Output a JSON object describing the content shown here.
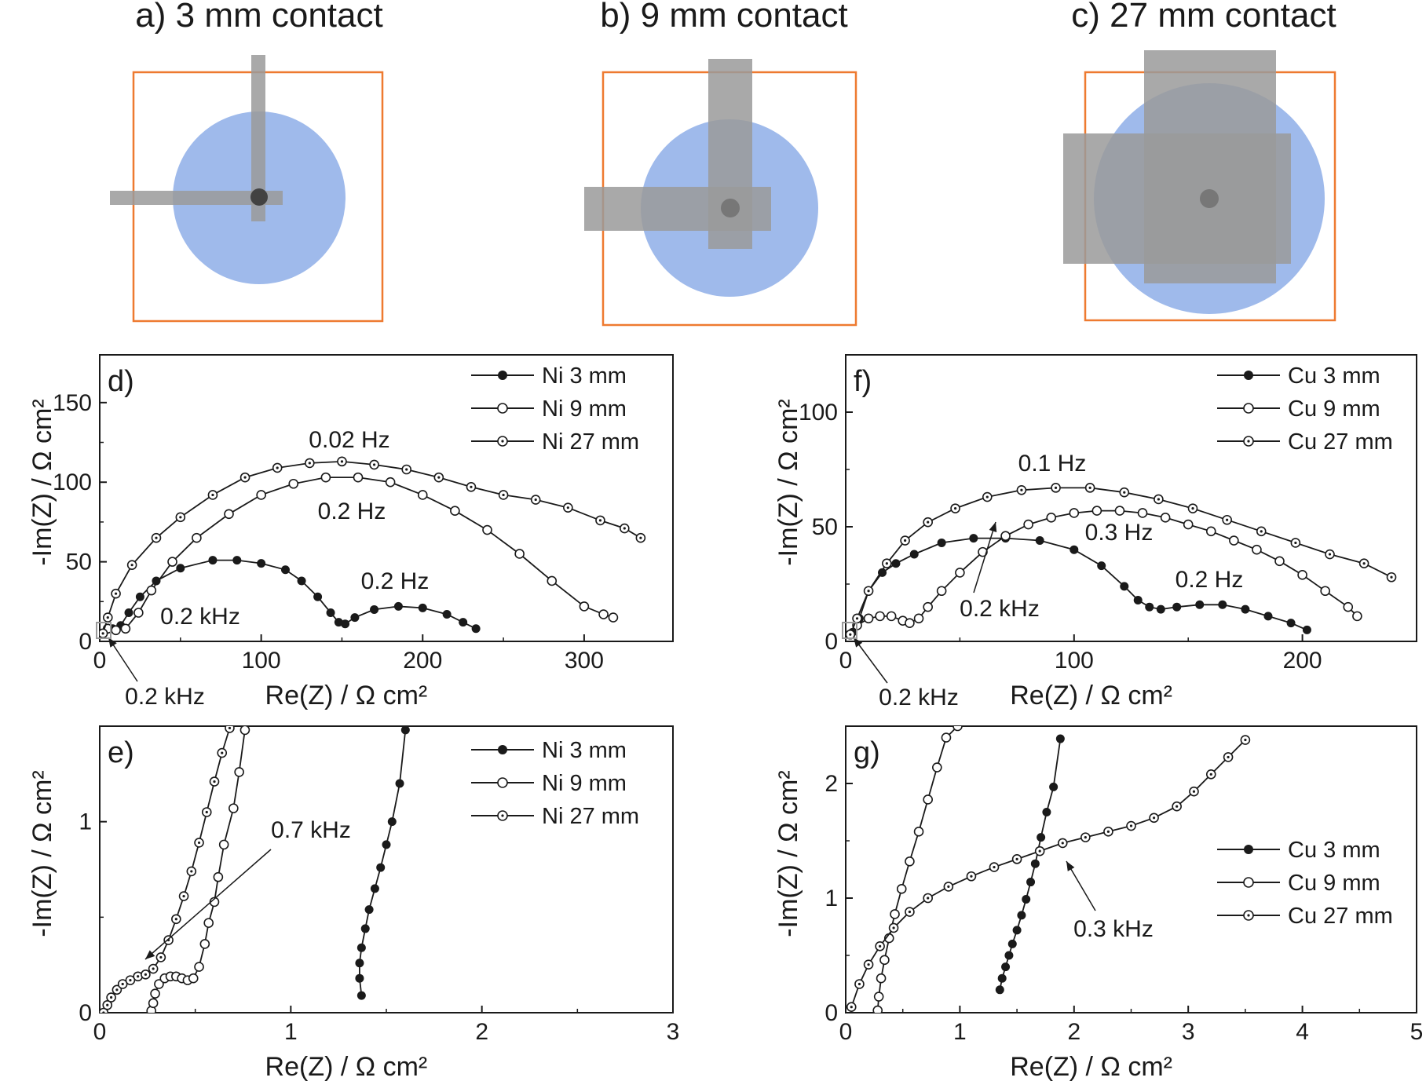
{
  "colors": {
    "contact": "#9a9a9a",
    "cell": "#8eaee8",
    "frame": "#ee7a30",
    "ink": "#1a1a1a"
  },
  "schematics": [
    {
      "label": "a) 3 mm contact"
    },
    {
      "label": "b) 9 mm contact"
    },
    {
      "label": "c) 27 mm contact"
    }
  ],
  "chart_data": [
    {
      "panel": "d)",
      "type": "line",
      "xlabel": "Re(Z) / Ω cm²",
      "ylabel": "-Im(Z) / Ω cm²",
      "xlim": [
        0,
        355
      ],
      "ylim": [
        0,
        180
      ],
      "xticks": [
        0,
        100,
        200,
        300
      ],
      "yticks": [
        0,
        50,
        100,
        150
      ],
      "legend": "top-right",
      "series": [
        {
          "name": "Ni 3 mm",
          "marker": "filled",
          "x": [
            8,
            13,
            18,
            25,
            35,
            50,
            70,
            85,
            100,
            115,
            125,
            135,
            143,
            148,
            152,
            158,
            170,
            185,
            200,
            215,
            225,
            233
          ],
          "y": [
            8,
            10,
            18,
            28,
            38,
            46,
            51,
            51,
            49,
            45,
            38,
            28,
            18,
            12,
            11,
            15,
            20,
            22,
            21,
            17,
            12,
            8
          ]
        },
        {
          "name": "Ni 9 mm",
          "marker": "open",
          "x": [
            5,
            10,
            16,
            24,
            32,
            45,
            60,
            80,
            100,
            120,
            140,
            160,
            180,
            200,
            220,
            240,
            260,
            280,
            300,
            312,
            318
          ],
          "y": [
            8,
            7,
            8,
            18,
            32,
            50,
            65,
            80,
            92,
            99,
            103,
            103,
            100,
            92,
            82,
            70,
            55,
            38,
            22,
            17,
            15
          ]
        },
        {
          "name": "Ni 27 mm",
          "marker": "dotted",
          "x": [
            2,
            5,
            10,
            20,
            35,
            50,
            70,
            90,
            110,
            130,
            150,
            170,
            190,
            210,
            230,
            250,
            270,
            290,
            310,
            325,
            335
          ],
          "y": [
            5,
            15,
            30,
            48,
            65,
            78,
            92,
            103,
            109,
            112,
            113,
            111,
            108,
            103,
            97,
            92,
            89,
            84,
            76,
            71,
            65
          ]
        }
      ],
      "annotations": [
        "0.02 Hz",
        "0.2 Hz",
        "0.2 Hz",
        "0.2 kHz",
        "0.2 kHz"
      ]
    },
    {
      "panel": "e)",
      "type": "line",
      "xlabel": "Re(Z) / Ω cm²",
      "ylabel": "-Im(Z) / Ω cm²",
      "xlim": [
        0,
        3
      ],
      "ylim": [
        0,
        1.5
      ],
      "xticks": [
        0,
        1,
        2,
        3
      ],
      "yticks": [
        0,
        1
      ],
      "legend": "top-right",
      "series": [
        {
          "name": "Ni 3 mm",
          "marker": "filled",
          "x": [
            1.37,
            1.36,
            1.36,
            1.37,
            1.39,
            1.41,
            1.44,
            1.47,
            1.5,
            1.53,
            1.57,
            1.6
          ],
          "y": [
            0.09,
            0.18,
            0.26,
            0.34,
            0.44,
            0.54,
            0.65,
            0.76,
            0.88,
            1.0,
            1.2,
            1.48
          ]
        },
        {
          "name": "Ni 9 mm",
          "marker": "open",
          "x": [
            0.27,
            0.28,
            0.29,
            0.31,
            0.34,
            0.37,
            0.4,
            0.43,
            0.46,
            0.49,
            0.52,
            0.55,
            0.57,
            0.6,
            0.62,
            0.65,
            0.7,
            0.73,
            0.76
          ],
          "y": [
            0.01,
            0.05,
            0.1,
            0.15,
            0.18,
            0.19,
            0.19,
            0.18,
            0.17,
            0.18,
            0.24,
            0.36,
            0.47,
            0.58,
            0.71,
            0.88,
            1.07,
            1.26,
            1.48
          ]
        },
        {
          "name": "Ni 27 mm",
          "marker": "dotted",
          "x": [
            0.02,
            0.04,
            0.06,
            0.09,
            0.12,
            0.16,
            0.2,
            0.24,
            0.28,
            0.32,
            0.36,
            0.4,
            0.44,
            0.48,
            0.52,
            0.56,
            0.6,
            0.64,
            0.68
          ],
          "y": [
            0.0,
            0.04,
            0.08,
            0.12,
            0.15,
            0.17,
            0.19,
            0.2,
            0.23,
            0.29,
            0.38,
            0.49,
            0.61,
            0.74,
            0.89,
            1.05,
            1.21,
            1.36,
            1.49
          ]
        }
      ],
      "annotations": [
        "0.7 kHz"
      ]
    },
    {
      "panel": "f)",
      "type": "line",
      "xlabel": "Re(Z) / Ω cm²",
      "ylabel": "-Im(Z) / Ω cm²",
      "xlim": [
        0,
        250
      ],
      "ylim": [
        0,
        125
      ],
      "xticks": [
        0,
        100,
        200
      ],
      "yticks": [
        0,
        50,
        100
      ],
      "legend": "top-right",
      "series": [
        {
          "name": "Cu 3 mm",
          "marker": "filled",
          "x": [
            3,
            6,
            10,
            16,
            22,
            30,
            42,
            56,
            70,
            85,
            100,
            112,
            122,
            128,
            133,
            138,
            145,
            155,
            165,
            175,
            185,
            195,
            202
          ],
          "y": [
            4,
            10,
            22,
            30,
            34,
            38,
            43,
            45,
            45,
            44,
            40,
            33,
            24,
            18,
            15,
            14,
            15,
            16,
            16,
            14,
            11,
            8,
            5
          ]
        },
        {
          "name": "Cu 9 mm",
          "marker": "open",
          "x": [
            2,
            5,
            10,
            15,
            20,
            25,
            28,
            32,
            36,
            42,
            50,
            60,
            70,
            80,
            90,
            100,
            110,
            120,
            130,
            140,
            150,
            160,
            170,
            180,
            190,
            200,
            210,
            220,
            224
          ],
          "y": [
            3,
            7,
            10,
            11,
            11,
            9,
            8,
            10,
            15,
            22,
            30,
            39,
            46,
            51,
            54,
            56,
            57,
            57,
            56,
            54,
            51,
            48,
            44,
            40,
            35,
            29,
            22,
            15,
            11
          ]
        },
        {
          "name": "Cu 27 mm",
          "marker": "dotted",
          "x": [
            2,
            5,
            10,
            18,
            26,
            36,
            48,
            62,
            77,
            92,
            107,
            122,
            137,
            152,
            167,
            182,
            197,
            212,
            227,
            239
          ],
          "y": [
            3,
            10,
            22,
            34,
            44,
            52,
            58,
            63,
            66,
            67,
            67,
            65,
            62,
            58,
            53,
            48,
            43,
            38,
            34,
            28
          ]
        }
      ],
      "annotations": [
        "0.1 Hz",
        "0.3 Hz",
        "0.2 Hz",
        "0.2 kHz",
        "0.2 kHz"
      ]
    },
    {
      "panel": "g)",
      "type": "line",
      "xlabel": "Re(Z) / Ω cm²",
      "ylabel": "-Im(Z) / Ω cm²",
      "xlim": [
        0,
        5
      ],
      "ylim": [
        0,
        2.5
      ],
      "xticks": [
        0,
        1,
        2,
        3,
        4,
        5
      ],
      "yticks": [
        0,
        1,
        2
      ],
      "legend": "right",
      "series": [
        {
          "name": "Cu 3 mm",
          "marker": "filled",
          "x": [
            1.35,
            1.37,
            1.4,
            1.43,
            1.46,
            1.5,
            1.54,
            1.58,
            1.62,
            1.66,
            1.71,
            1.76,
            1.82,
            1.88
          ],
          "y": [
            0.2,
            0.3,
            0.4,
            0.5,
            0.6,
            0.72,
            0.85,
            0.99,
            1.14,
            1.3,
            1.53,
            1.75,
            1.97,
            2.39
          ]
        },
        {
          "name": "Cu 9 mm",
          "marker": "open",
          "x": [
            0.28,
            0.29,
            0.31,
            0.34,
            0.38,
            0.43,
            0.49,
            0.56,
            0.64,
            0.72,
            0.8,
            0.88,
            0.98
          ],
          "y": [
            0.02,
            0.14,
            0.3,
            0.46,
            0.65,
            0.86,
            1.08,
            1.32,
            1.58,
            1.86,
            2.14,
            2.4,
            2.5
          ]
        },
        {
          "name": "Cu 27 mm",
          "marker": "dotted",
          "x": [
            0.05,
            0.12,
            0.2,
            0.3,
            0.42,
            0.56,
            0.72,
            0.9,
            1.1,
            1.3,
            1.5,
            1.7,
            1.9,
            2.1,
            2.3,
            2.5,
            2.7,
            2.9,
            3.05,
            3.2,
            3.35,
            3.5
          ],
          "y": [
            0.05,
            0.25,
            0.42,
            0.58,
            0.74,
            0.88,
            1.0,
            1.1,
            1.19,
            1.27,
            1.34,
            1.41,
            1.48,
            1.53,
            1.58,
            1.63,
            1.7,
            1.8,
            1.93,
            2.08,
            2.23,
            2.38
          ]
        }
      ],
      "annotations": [
        "0.3 kHz"
      ]
    }
  ]
}
